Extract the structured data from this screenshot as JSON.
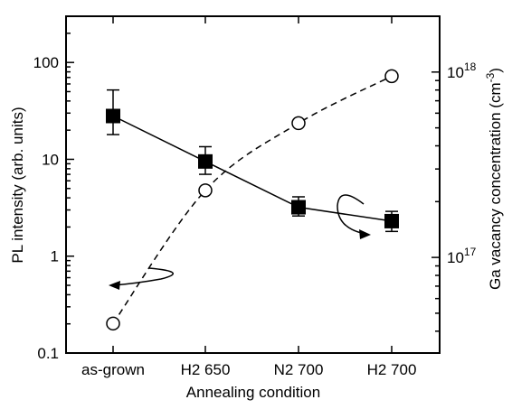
{
  "chart_data": {
    "type": "line",
    "categories": [
      "as-grown",
      "H2 650",
      "N2 700",
      "H2 700"
    ],
    "xlabel": "Annealing condition",
    "ylabel_left": "PL intensity  (arb. units)",
    "ylabel_right_parts": [
      "Ga vacancy concentration (cm",
      "-3",
      ")"
    ],
    "left_axis": {
      "scale": "log",
      "ylim": [
        0.1,
        300
      ],
      "ticks": [
        0.1,
        1,
        10,
        100
      ],
      "tick_labels": [
        "0.1",
        "1",
        "10",
        "100"
      ]
    },
    "right_axis": {
      "scale": "log",
      "ylim": [
        3.05e+16,
        2e+18
      ],
      "ticks": [
        1e+17,
        1e+18
      ],
      "tick_labels": [
        {
          "base": "10",
          "exp": "17"
        },
        {
          "base": "10",
          "exp": "18"
        }
      ]
    },
    "series": [
      {
        "axis": "left",
        "marker": "filled-square",
        "line": "solid",
        "values": [
          28,
          9.5,
          3.2,
          2.3
        ],
        "err_low": [
          18,
          7,
          2.6,
          1.8
        ],
        "err_high": [
          52,
          13.5,
          4.1,
          2.9
        ]
      },
      {
        "axis": "right",
        "marker": "open-circle",
        "line": "dashed",
        "values": [
          4.4e+16,
          2.3e+17,
          5.3e+17,
          9.5e+17
        ]
      }
    ],
    "annotations": [
      {
        "type": "curved-arrow",
        "series": 1,
        "points_to": "left-axis"
      },
      {
        "type": "curved-arrow",
        "series": 0,
        "points_to": "right-axis"
      }
    ],
    "grid": false,
    "legend": "none"
  }
}
